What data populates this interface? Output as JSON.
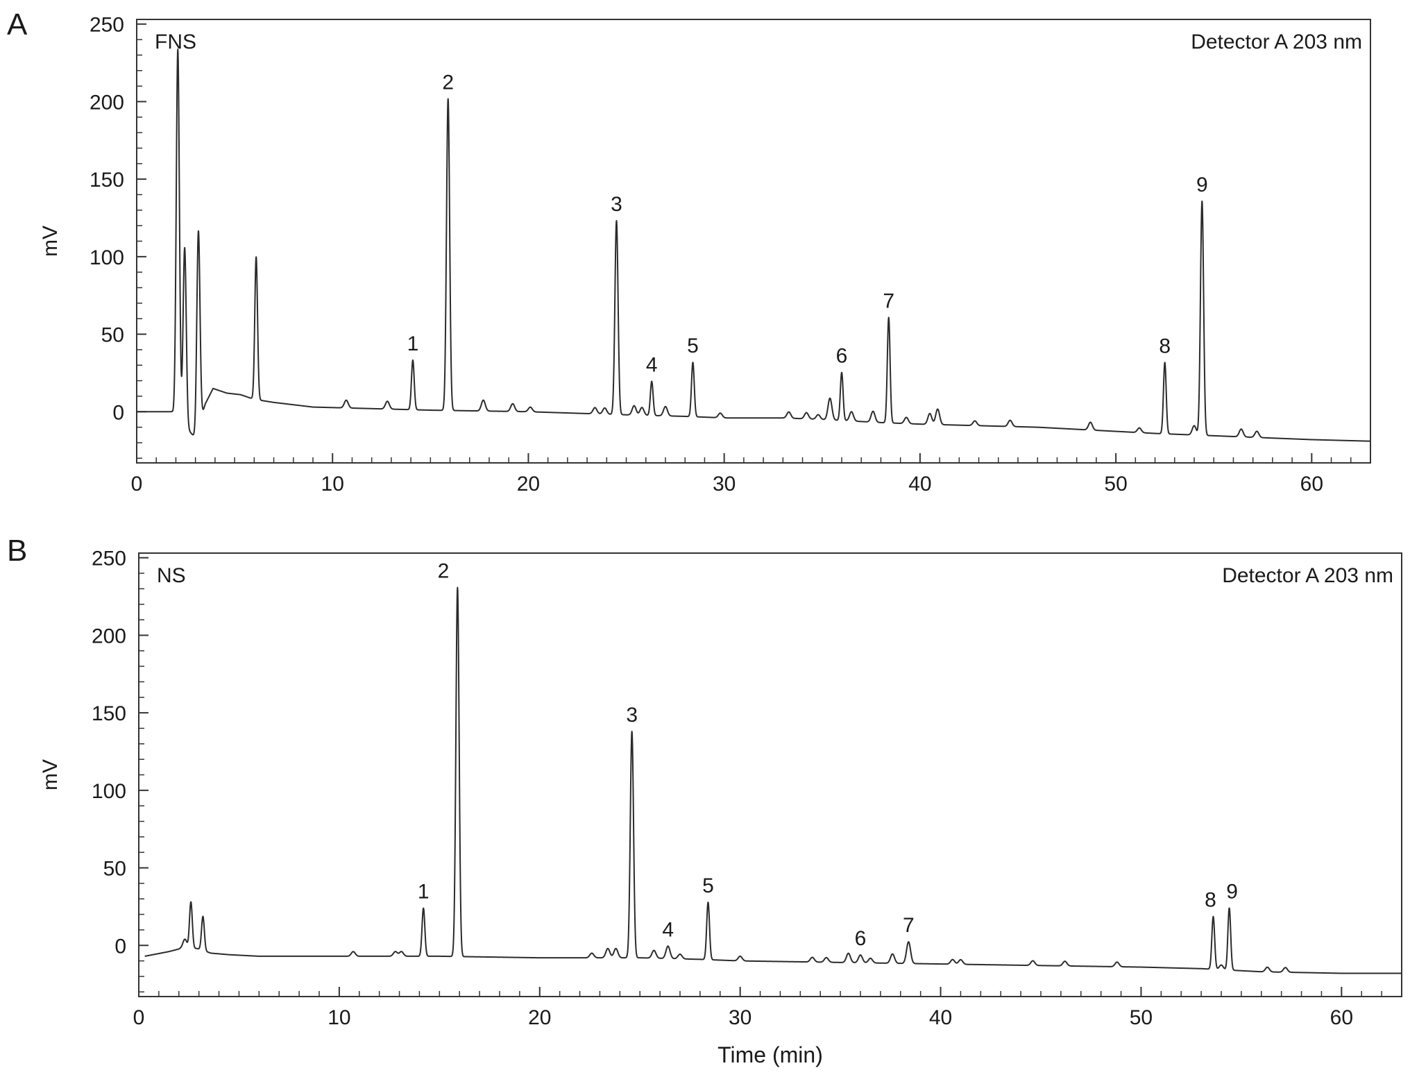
{
  "chart_data": [
    {
      "type": "line",
      "panel_letter": "A",
      "sample_label": "FNS",
      "detector_label": "Detector A 203 nm",
      "xlabel": "",
      "ylabel": "mV",
      "xlim": [
        0,
        63
      ],
      "ylim": [
        -33,
        253
      ],
      "x_ticks": [
        0,
        10,
        20,
        30,
        40,
        50,
        60
      ],
      "y_ticks": [
        0,
        50,
        100,
        150,
        200,
        250
      ],
      "grid": false,
      "baseline_points": [
        [
          0,
          0
        ],
        [
          1.8,
          0
        ],
        [
          3.0,
          -17
        ],
        [
          3.5,
          5
        ],
        [
          3.9,
          15
        ],
        [
          4.6,
          12
        ],
        [
          5.3,
          11
        ],
        [
          6.0,
          8
        ],
        [
          7,
          6
        ],
        [
          9,
          3
        ],
        [
          12,
          2
        ],
        [
          15,
          1
        ],
        [
          20,
          0
        ],
        [
          25,
          -2
        ],
        [
          28,
          -3
        ],
        [
          30,
          -4
        ],
        [
          33,
          -4
        ],
        [
          35,
          -5
        ],
        [
          38,
          -7
        ],
        [
          40,
          -8
        ],
        [
          43,
          -9
        ],
        [
          46,
          -10
        ],
        [
          49,
          -12
        ],
        [
          52,
          -14
        ],
        [
          54,
          -15
        ],
        [
          56,
          -16
        ],
        [
          58,
          -17
        ],
        [
          60,
          -18
        ],
        [
          63,
          -19
        ]
      ],
      "peaks": [
        {
          "rt": 2.1,
          "height": 238,
          "label": ""
        },
        {
          "rt": 2.45,
          "height": 115,
          "label": ""
        },
        {
          "rt": 3.15,
          "height": 127,
          "label": ""
        },
        {
          "rt": 6.1,
          "height": 92,
          "label": ""
        },
        {
          "rt": 10.7,
          "height": 5,
          "label": ""
        },
        {
          "rt": 12.8,
          "height": 5,
          "label": ""
        },
        {
          "rt": 14.1,
          "height": 32,
          "label": "1"
        },
        {
          "rt": 15.9,
          "height": 201,
          "label": "2"
        },
        {
          "rt": 17.7,
          "height": 7,
          "label": ""
        },
        {
          "rt": 19.2,
          "height": 5,
          "label": ""
        },
        {
          "rt": 20.1,
          "height": 3,
          "label": ""
        },
        {
          "rt": 23.4,
          "height": 4,
          "label": ""
        },
        {
          "rt": 23.9,
          "height": 4,
          "label": ""
        },
        {
          "rt": 24.5,
          "height": 125,
          "label": "3"
        },
        {
          "rt": 25.4,
          "height": 6,
          "label": ""
        },
        {
          "rt": 25.8,
          "height": 5,
          "label": ""
        },
        {
          "rt": 26.3,
          "height": 22,
          "label": "4"
        },
        {
          "rt": 27.0,
          "height": 6,
          "label": ""
        },
        {
          "rt": 28.4,
          "height": 35,
          "label": "5"
        },
        {
          "rt": 29.8,
          "height": 3,
          "label": ""
        },
        {
          "rt": 33.3,
          "height": 4,
          "label": ""
        },
        {
          "rt": 34.2,
          "height": 4,
          "label": ""
        },
        {
          "rt": 34.8,
          "height": 3,
          "label": ""
        },
        {
          "rt": 35.4,
          "height": 14,
          "label": ""
        },
        {
          "rt": 36.0,
          "height": 31,
          "label": "6"
        },
        {
          "rt": 36.5,
          "height": 6,
          "label": ""
        },
        {
          "rt": 37.6,
          "height": 7,
          "label": ""
        },
        {
          "rt": 38.4,
          "height": 68,
          "label": "7"
        },
        {
          "rt": 39.3,
          "height": 4,
          "label": ""
        },
        {
          "rt": 40.5,
          "height": 7,
          "label": ""
        },
        {
          "rt": 40.9,
          "height": 10,
          "label": ""
        },
        {
          "rt": 42.8,
          "height": 3,
          "label": ""
        },
        {
          "rt": 44.6,
          "height": 4,
          "label": ""
        },
        {
          "rt": 48.7,
          "height": 5,
          "label": ""
        },
        {
          "rt": 51.2,
          "height": 3,
          "label": ""
        },
        {
          "rt": 52.5,
          "height": 46,
          "label": "8"
        },
        {
          "rt": 54.0,
          "height": 6,
          "label": ""
        },
        {
          "rt": 54.4,
          "height": 151,
          "label": "9"
        },
        {
          "rt": 56.4,
          "height": 5,
          "label": ""
        },
        {
          "rt": 57.2,
          "height": 4,
          "label": ""
        }
      ]
    },
    {
      "type": "line",
      "panel_letter": "B",
      "sample_label": "NS",
      "detector_label": "Detector A 203 nm",
      "xlabel": "Time (min)",
      "ylabel": "mV",
      "xlim": [
        0,
        63
      ],
      "ylim": [
        -33,
        253
      ],
      "x_ticks": [
        0,
        10,
        20,
        30,
        40,
        50,
        60
      ],
      "y_ticks": [
        0,
        50,
        100,
        150,
        200,
        250
      ],
      "grid": false,
      "baseline_points": [
        [
          0.3,
          -7
        ],
        [
          1.5,
          -4
        ],
        [
          2.1,
          -2
        ],
        [
          2.9,
          -2
        ],
        [
          3.6,
          -5
        ],
        [
          4.5,
          -6
        ],
        [
          6,
          -7
        ],
        [
          10,
          -7
        ],
        [
          15,
          -7
        ],
        [
          20,
          -8
        ],
        [
          25,
          -8
        ],
        [
          28,
          -9
        ],
        [
          30,
          -10
        ],
        [
          35,
          -11
        ],
        [
          40,
          -12
        ],
        [
          45,
          -13
        ],
        [
          50,
          -14
        ],
        [
          53,
          -15
        ],
        [
          56,
          -17
        ],
        [
          60,
          -18
        ],
        [
          63,
          -18
        ]
      ],
      "peaks": [
        {
          "rt": 2.3,
          "height": 6,
          "label": ""
        },
        {
          "rt": 2.6,
          "height": 30,
          "label": ""
        },
        {
          "rt": 3.2,
          "height": 22,
          "label": ""
        },
        {
          "rt": 10.7,
          "height": 3,
          "label": ""
        },
        {
          "rt": 12.8,
          "height": 3,
          "label": ""
        },
        {
          "rt": 13.1,
          "height": 3,
          "label": ""
        },
        {
          "rt": 14.2,
          "height": 31,
          "label": "1"
        },
        {
          "rt": 15.9,
          "height": 238,
          "label": "2"
        },
        {
          "rt": 22.6,
          "height": 3,
          "label": ""
        },
        {
          "rt": 23.4,
          "height": 6,
          "label": ""
        },
        {
          "rt": 23.8,
          "height": 6,
          "label": ""
        },
        {
          "rt": 24.6,
          "height": 146,
          "label": "3"
        },
        {
          "rt": 25.7,
          "height": 5,
          "label": ""
        },
        {
          "rt": 26.4,
          "height": 8,
          "label": "4"
        },
        {
          "rt": 27.0,
          "height": 3,
          "label": ""
        },
        {
          "rt": 28.4,
          "height": 37,
          "label": "5"
        },
        {
          "rt": 30.0,
          "height": 3,
          "label": ""
        },
        {
          "rt": 33.6,
          "height": 3,
          "label": ""
        },
        {
          "rt": 34.3,
          "height": 3,
          "label": ""
        },
        {
          "rt": 35.4,
          "height": 6,
          "label": ""
        },
        {
          "rt": 36.0,
          "height": 5,
          "label": "6"
        },
        {
          "rt": 36.5,
          "height": 3,
          "label": ""
        },
        {
          "rt": 37.6,
          "height": 6,
          "label": ""
        },
        {
          "rt": 38.4,
          "height": 14,
          "label": "7"
        },
        {
          "rt": 40.6,
          "height": 3,
          "label": ""
        },
        {
          "rt": 41.0,
          "height": 3,
          "label": ""
        },
        {
          "rt": 44.6,
          "height": 3,
          "label": ""
        },
        {
          "rt": 46.2,
          "height": 3,
          "label": ""
        },
        {
          "rt": 48.8,
          "height": 3,
          "label": ""
        },
        {
          "rt": 53.6,
          "height": 34,
          "label": "8"
        },
        {
          "rt": 54.0,
          "height": 3,
          "label": ""
        },
        {
          "rt": 54.4,
          "height": 40,
          "label": "9"
        },
        {
          "rt": 56.3,
          "height": 3,
          "label": ""
        },
        {
          "rt": 57.2,
          "height": 3,
          "label": ""
        }
      ]
    }
  ]
}
